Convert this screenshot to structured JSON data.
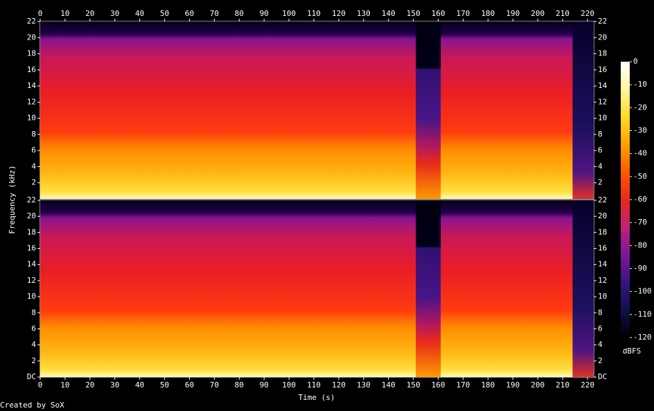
{
  "chart_data": {
    "type": "spectrogram",
    "xlabel": "Time (s)",
    "ylabel": "Frequency (kHz)",
    "footer": "Created by SoX",
    "xlim": [
      0,
      222.5
    ],
    "xticks": [
      0,
      10,
      20,
      30,
      40,
      50,
      60,
      70,
      80,
      90,
      100,
      110,
      120,
      130,
      140,
      150,
      160,
      170,
      180,
      190,
      200,
      210,
      220
    ],
    "panels": [
      {
        "ylim": [
          0,
          22
        ],
        "yticks": [
          2,
          4,
          6,
          8,
          10,
          12,
          14,
          16,
          18,
          20,
          22
        ]
      },
      {
        "ylim": [
          0,
          22
        ],
        "yticks": [
          {
            "value": 0,
            "label": "DC"
          },
          2,
          4,
          6,
          8,
          10,
          12,
          14,
          16,
          18,
          20,
          22
        ]
      }
    ],
    "colorbar": {
      "label": "dBFS",
      "lim": [
        -120,
        0
      ],
      "ticks": [
        0,
        -10,
        -20,
        -30,
        -40,
        -50,
        -60,
        -70,
        -80,
        -90,
        -100,
        -110,
        -120
      ],
      "colors": [
        "#000000",
        "#10104a",
        "#3a1480",
        "#7a1898",
        "#c0207a",
        "#e8281e",
        "#ff5a00",
        "#ffa000",
        "#ffdc20",
        "#fff6a0",
        "#ffffff"
      ]
    }
  }
}
